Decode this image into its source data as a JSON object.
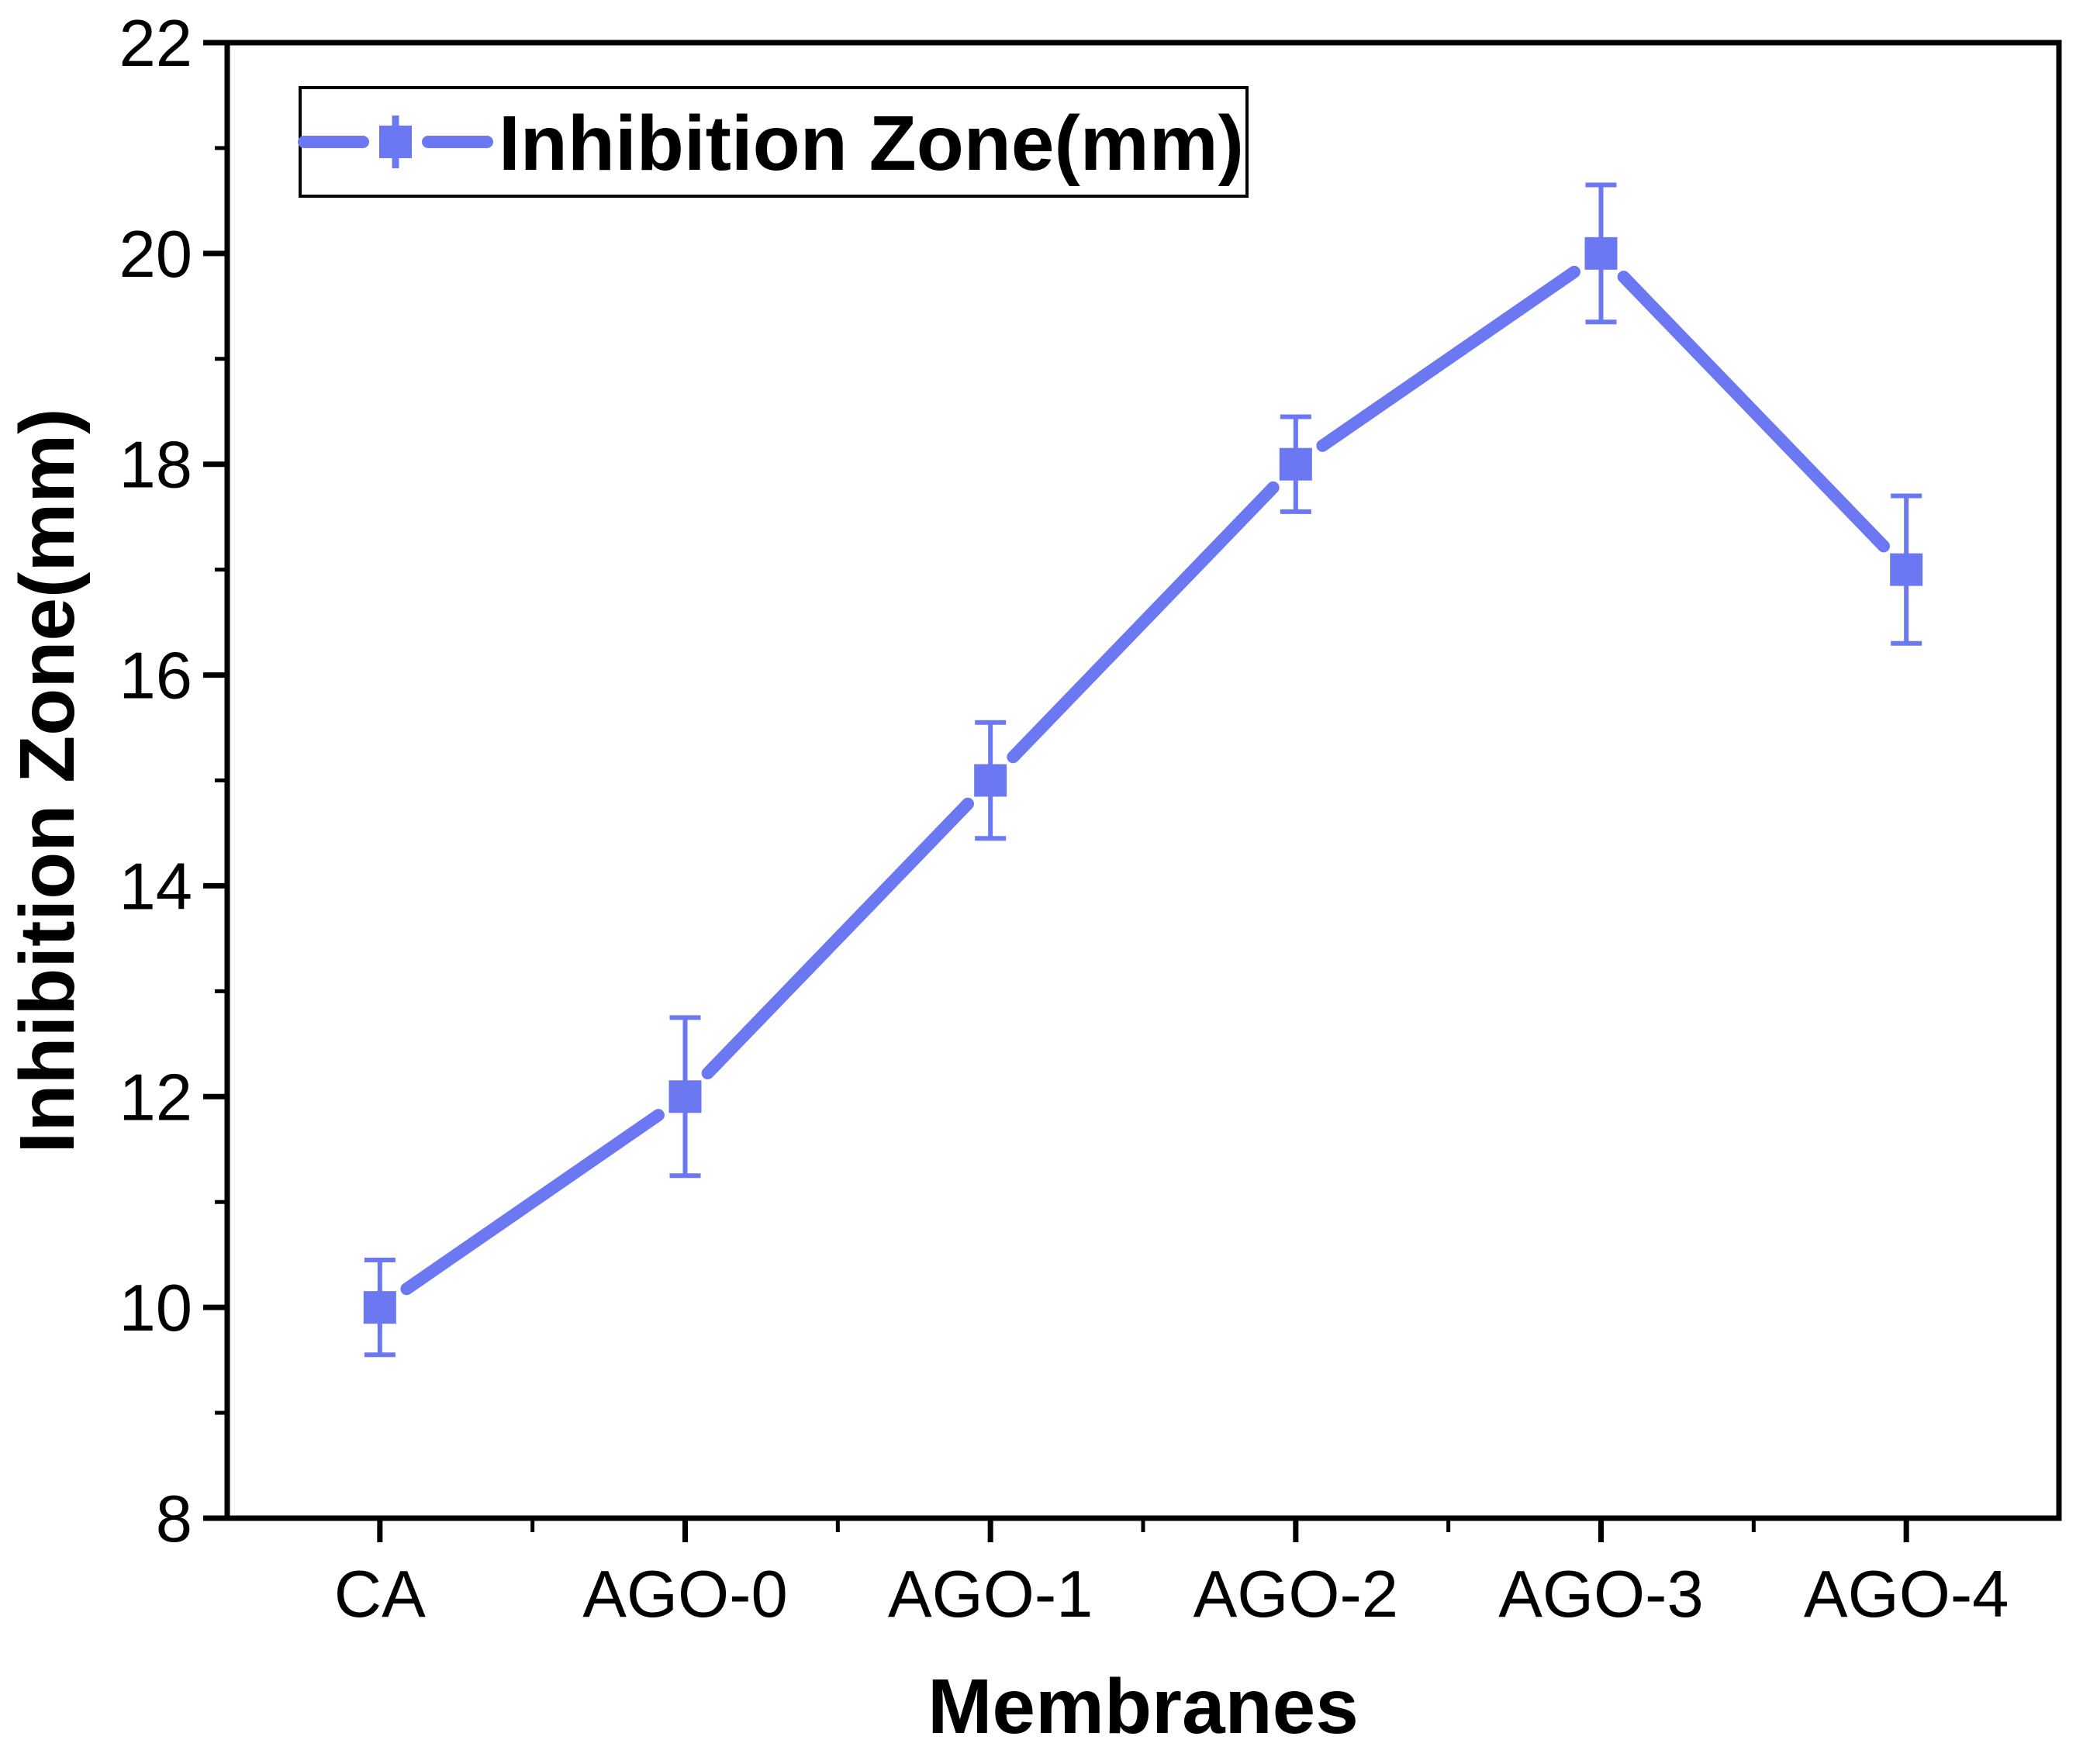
{
  "chart_data": {
    "type": "line",
    "title": "",
    "categories": [
      "CA",
      "AGO-0",
      "AGO-1",
      "AGO-2",
      "AGO-3",
      "AGO-4"
    ],
    "series": [
      {
        "name": "Inhibition Zone(mm)",
        "values": [
          10,
          12,
          15,
          18,
          20,
          17
        ],
        "errors": [
          0.45,
          0.75,
          0.55,
          0.45,
          0.65,
          0.7
        ]
      }
    ],
    "xlabel": "Membranes",
    "ylabel": "Inhibition Zone(mm)",
    "ylim": [
      8,
      22
    ],
    "ytick_step": 2,
    "ytick_labels": [
      "8",
      "10",
      "12",
      "14",
      "16",
      "18",
      "20",
      "22"
    ],
    "grid": false,
    "legend_position": "top-left",
    "marker": "square",
    "colors": {
      "series": "#6C78F2",
      "axis": "#000000",
      "background": "#FFFFFF"
    }
  }
}
